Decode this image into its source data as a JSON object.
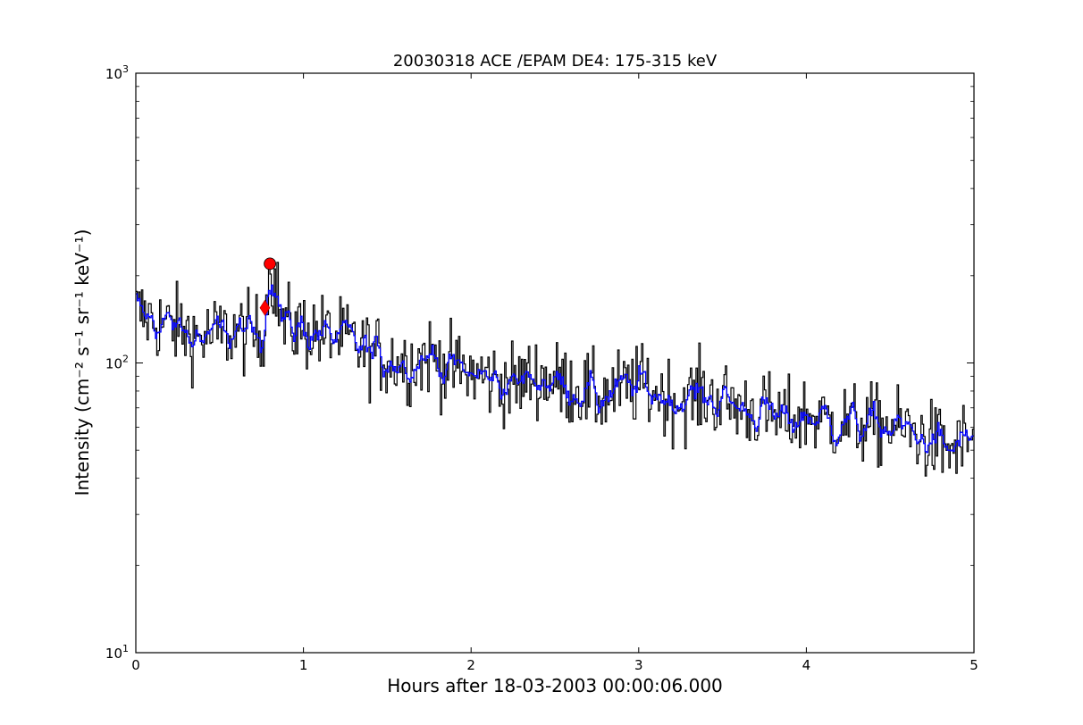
{
  "chart_data": {
    "type": "line",
    "title": "20030318 ACE /EPAM DE4: 175-315 keV",
    "xlabel": "Hours after 18-03-2003 00:00:06.000",
    "ylabel": "Intensity (cm⁻² s⁻¹ sr⁻¹ keV⁻¹)",
    "xlim": [
      0,
      5
    ],
    "ylim": [
      10,
      1000
    ],
    "yscale": "log",
    "x_ticks": [
      0,
      1,
      2,
      3,
      4,
      5
    ],
    "x_tick_labels": [
      "0",
      "1",
      "2",
      "3",
      "4",
      "5"
    ],
    "y_ticks": [
      {
        "value": 10,
        "base": "10",
        "exp": "1"
      },
      {
        "value": 100,
        "base": "10",
        "exp": "2"
      },
      {
        "value": 1000,
        "base": "10",
        "exp": "3"
      }
    ],
    "grid": false,
    "series": [
      {
        "style": "steps",
        "color": "#000000",
        "x": [
          0.0,
          0.125,
          0.25,
          0.375,
          0.5,
          0.625,
          0.75,
          0.8,
          0.875,
          1.0,
          1.125,
          1.25,
          1.375,
          1.5,
          1.625,
          1.75,
          1.875,
          2.0,
          2.125,
          2.25,
          2.375,
          2.5,
          2.625,
          2.75,
          2.875,
          3.0,
          3.125,
          3.25,
          3.375,
          3.5,
          3.625,
          3.75,
          3.875,
          4.0,
          4.125,
          4.25,
          4.375,
          4.5,
          4.625,
          4.75,
          4.875,
          5.0
        ],
        "values": [
          150,
          138,
          132,
          122,
          126,
          128,
          123,
          220,
          135,
          131,
          125,
          120,
          110,
          104,
          100,
          106,
          96,
          92,
          88,
          84,
          90,
          86,
          82,
          76,
          80,
          84,
          78,
          74,
          78,
          74,
          70,
          67,
          63,
          66,
          63,
          62,
          61,
          60,
          58,
          53,
          50,
          56
        ]
      },
      {
        "style": "smoothed",
        "color": "#0000ff",
        "x": [
          0.0,
          0.125,
          0.25,
          0.375,
          0.5,
          0.625,
          0.75,
          0.8,
          0.875,
          1.0,
          1.125,
          1.25,
          1.375,
          1.5,
          1.625,
          1.75,
          1.875,
          2.0,
          2.125,
          2.25,
          2.375,
          2.5,
          2.625,
          2.75,
          2.875,
          3.0,
          3.125,
          3.25,
          3.375,
          3.5,
          3.625,
          3.75,
          3.875,
          4.0,
          4.125,
          4.25,
          4.375,
          4.5,
          4.625,
          4.75,
          4.875,
          5.0
        ],
        "values": [
          150,
          138,
          132,
          122,
          126,
          128,
          123,
          220,
          135,
          131,
          125,
          120,
          110,
          104,
          100,
          106,
          96,
          92,
          88,
          84,
          90,
          86,
          82,
          76,
          80,
          84,
          78,
          74,
          78,
          74,
          70,
          67,
          63,
          66,
          63,
          62,
          61,
          60,
          58,
          53,
          50,
          56
        ]
      }
    ],
    "markers": [
      {
        "shape": "diamond",
        "color": "#ff0000",
        "x": 0.77,
        "y": 155
      },
      {
        "shape": "circle",
        "color": "#ff0000",
        "x": 0.8,
        "y": 220
      }
    ]
  }
}
